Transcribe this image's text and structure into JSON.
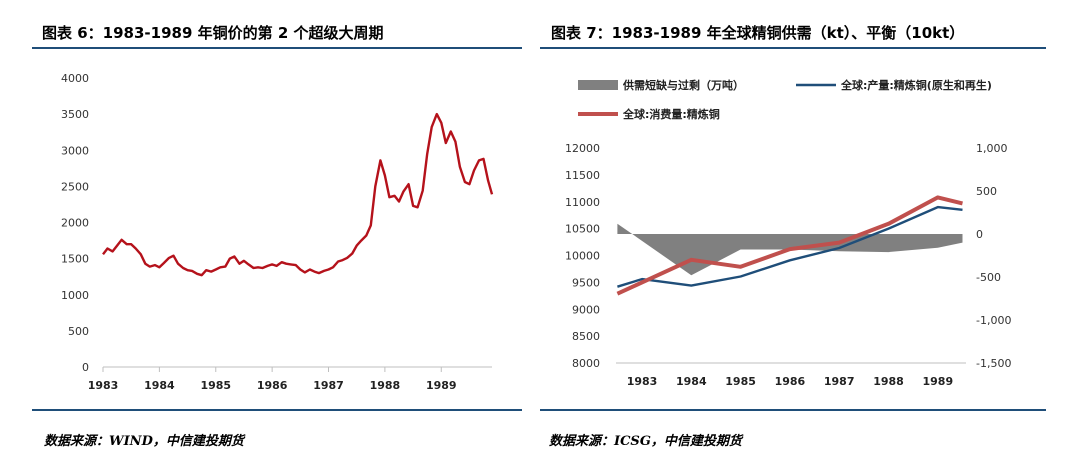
{
  "left": {
    "title": "图表 6：1983-1989 年铜价的第 2 个超级大周期",
    "source": "数据来源：WIND，中信建投期货"
  },
  "right": {
    "title": "图表 7：1983-1989 年全球精铜供需（kt）、平衡（10kt）",
    "source": "数据来源：ICSG，中信建投期货"
  },
  "colors": {
    "rule": "#1f4e79",
    "price_line": "#b5121b",
    "production": "#1f4e79",
    "consumption": "#c0504d",
    "balance": "#808080"
  },
  "chart_data": [
    {
      "type": "line",
      "title": "",
      "xlabel": "",
      "ylabel": "",
      "x_ticks": [
        "1983",
        "1984",
        "1985",
        "1986",
        "1987",
        "1988",
        "1989"
      ],
      "xlim": [
        1983,
        1989.9
      ],
      "ylim": [
        0,
        4000
      ],
      "y_ticks": [
        "0",
        "500",
        "1000",
        "1500",
        "2000",
        "2500",
        "3000",
        "3500",
        "4000"
      ],
      "grid": false,
      "series": [
        {
          "x": [
            1983.0,
            1983.08,
            1983.17,
            1983.25,
            1983.33,
            1983.42,
            1983.5,
            1983.58,
            1983.67,
            1983.75,
            1983.83,
            1983.92,
            1984.0,
            1984.08,
            1984.17,
            1984.25,
            1984.33,
            1984.42,
            1984.5,
            1984.58,
            1984.67,
            1984.75,
            1984.83,
            1984.92,
            1985.0,
            1985.08,
            1985.17,
            1985.25,
            1985.33,
            1985.42,
            1985.5,
            1985.58,
            1985.67,
            1985.75,
            1985.83,
            1985.92,
            1986.0,
            1986.08,
            1986.17,
            1986.25,
            1986.33,
            1986.42,
            1986.5,
            1986.58,
            1986.67,
            1986.75,
            1986.83,
            1986.92,
            1987.0,
            1987.08,
            1987.17,
            1987.25,
            1987.33,
            1987.42,
            1987.5,
            1987.58,
            1987.67,
            1987.75,
            1987.83,
            1987.92,
            1988.0,
            1988.08,
            1988.17,
            1988.25,
            1988.33,
            1988.42,
            1988.5,
            1988.58,
            1988.67,
            1988.75,
            1988.83,
            1988.92,
            1989.0,
            1989.08,
            1989.17,
            1989.25,
            1989.33,
            1989.42,
            1989.5,
            1989.58,
            1989.67,
            1989.75,
            1989.83,
            1989.9
          ],
          "y": [
            1560,
            1640,
            1600,
            1680,
            1760,
            1700,
            1700,
            1640,
            1560,
            1430,
            1390,
            1410,
            1380,
            1440,
            1510,
            1540,
            1430,
            1370,
            1340,
            1330,
            1290,
            1270,
            1340,
            1320,
            1350,
            1380,
            1390,
            1500,
            1530,
            1430,
            1470,
            1420,
            1370,
            1380,
            1370,
            1400,
            1420,
            1400,
            1450,
            1430,
            1420,
            1410,
            1350,
            1310,
            1350,
            1320,
            1300,
            1330,
            1350,
            1380,
            1460,
            1480,
            1510,
            1570,
            1680,
            1750,
            1820,
            1960,
            2500,
            2860,
            2650,
            2350,
            2370,
            2290,
            2430,
            2530,
            2230,
            2210,
            2440,
            2950,
            3320,
            3500,
            3380,
            3100,
            3260,
            3120,
            2770,
            2560,
            2530,
            2720,
            2860,
            2880,
            2580,
            2390
          ]
        }
      ]
    },
    {
      "type": "line",
      "title": "",
      "categories": [
        "1983",
        "1984",
        "1985",
        "1986",
        "1987",
        "1988",
        "1989"
      ],
      "xlabel": "",
      "ylabel": "",
      "ylim_left": [
        8000,
        12000
      ],
      "y_ticks_left": [
        "8000",
        "8500",
        "9000",
        "9500",
        "10000",
        "10500",
        "11000",
        "11500",
        "12000"
      ],
      "ylim_right": [
        -1500,
        1000
      ],
      "y_ticks_right": [
        "-1,500",
        "-1,000",
        "-500",
        "0",
        "500",
        "1,000"
      ],
      "legend_position": "top",
      "grid": false,
      "series": [
        {
          "name": "供需短缺与过剩（万吨）",
          "kind": "area",
          "axis": "right",
          "values": [
            120,
            -480,
            -180,
            -180,
            -200,
            -210,
            -160
          ],
          "x": [
            1982.5,
            1984,
            1985,
            1986,
            1987,
            1988,
            1989
          ],
          "x_end": 1989.5,
          "end_value": -100
        },
        {
          "name": "全球:产量:精炼铜(原生和再生)",
          "kind": "line",
          "axis": "left",
          "values": [
            9560,
            9440,
            9610,
            9910,
            10140,
            10500,
            10900
          ],
          "x_start": 1982.5,
          "start_value": 9420,
          "x_end": 1989.5,
          "end_value": 10850
        },
        {
          "name": "全球:消费量:精炼铜",
          "kind": "line",
          "axis": "left",
          "values": [
            9500,
            9920,
            9790,
            10120,
            10240,
            10590,
            11080
          ],
          "x_start": 1982.5,
          "start_value": 9290,
          "x_end": 1989.5,
          "end_value": 10970
        }
      ]
    }
  ]
}
